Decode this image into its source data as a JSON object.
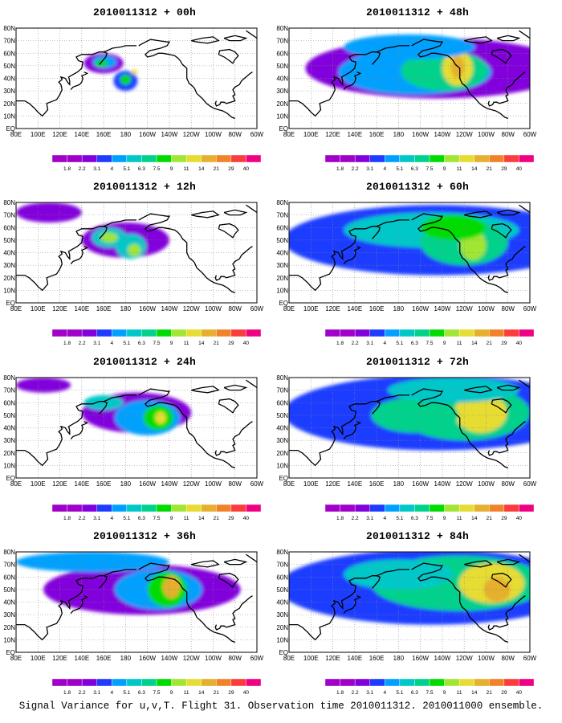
{
  "figure": {
    "caption": "Signal Variance for u,v,T. Flight 31. Observation time 2010011312. 2010011000 ensemble.",
    "lat_labels": [
      "80N",
      "70N",
      "60N",
      "50N",
      "40N",
      "30N",
      "20N",
      "10N",
      "EQ"
    ],
    "lon_labels": [
      "80E",
      "100E",
      "120E",
      "140E",
      "160E",
      "180",
      "160W",
      "140W",
      "120W",
      "100W",
      "80W",
      "60W"
    ],
    "colorbar_labels": [
      "1.8",
      "2.2",
      "3.1",
      "4",
      "5.1",
      "6.3",
      "7.5",
      "9",
      "11",
      "14",
      "21",
      "29",
      "40"
    ],
    "colorbar_colors": [
      "#a000c8",
      "#8200dc",
      "#1e3cff",
      "#00a0ff",
      "#00c8c8",
      "#00d28c",
      "#00dc00",
      "#a0e632",
      "#e6dc32",
      "#e6af2d",
      "#f08228",
      "#fa3c3c",
      "#f00082"
    ],
    "coastline_color": "#000000"
  },
  "panels": [
    {
      "title": "2010011312 + 00h",
      "blobs": [
        [
          160,
          52,
          18,
          8,
          1
        ],
        [
          161,
          53,
          11,
          5,
          3
        ],
        [
          158,
          52,
          6,
          3,
          6
        ],
        [
          180,
          38,
          11,
          8,
          2
        ],
        [
          180,
          39,
          5,
          4,
          6
        ],
        [
          188,
          45,
          3,
          2,
          8
        ]
      ]
    },
    {
      "title": "2010011312 + 48h",
      "blobs": [
        [
          215,
          48,
          120,
          24,
          1
        ],
        [
          195,
          45,
          70,
          18,
          3
        ],
        [
          222,
          46,
          40,
          16,
          5
        ],
        [
          234,
          48,
          14,
          14,
          8
        ],
        [
          234,
          49,
          6,
          9,
          9
        ],
        [
          190,
          65,
          60,
          10,
          3
        ]
      ]
    },
    {
      "title": "2010011312 + 12h",
      "blobs": [
        [
          180,
          50,
          40,
          14,
          1
        ],
        [
          165,
          52,
          16,
          8,
          4
        ],
        [
          165,
          52,
          8,
          4,
          7
        ],
        [
          185,
          45,
          14,
          10,
          4
        ],
        [
          188,
          42,
          6,
          5,
          7
        ],
        [
          110,
          72,
          30,
          8,
          1
        ]
      ]
    },
    {
      "title": "2010011312 + 60h",
      "blobs": [
        [
          215,
          50,
          140,
          28,
          2
        ],
        [
          210,
          58,
          80,
          14,
          4
        ],
        [
          240,
          48,
          40,
          18,
          5
        ],
        [
          248,
          46,
          12,
          12,
          7
        ],
        [
          230,
          60,
          30,
          10,
          6
        ]
      ]
    },
    {
      "title": "2010011312 + 24h",
      "blobs": [
        [
          190,
          52,
          50,
          16,
          1
        ],
        [
          200,
          48,
          30,
          14,
          3
        ],
        [
          210,
          48,
          14,
          10,
          6
        ],
        [
          212,
          48,
          5,
          5,
          8
        ],
        [
          160,
          60,
          18,
          6,
          4
        ],
        [
          105,
          74,
          25,
          6,
          1
        ]
      ]
    },
    {
      "title": "2010011312 + 72h",
      "blobs": [
        [
          215,
          52,
          140,
          30,
          2
        ],
        [
          240,
          52,
          60,
          22,
          5
        ],
        [
          255,
          52,
          24,
          16,
          8
        ],
        [
          195,
          50,
          40,
          14,
          5
        ],
        [
          230,
          70,
          60,
          10,
          4
        ]
      ]
    },
    {
      "title": "2010011312 + 36h",
      "blobs": [
        [
          195,
          50,
          90,
          20,
          1
        ],
        [
          210,
          50,
          40,
          16,
          3
        ],
        [
          218,
          50,
          18,
          14,
          6
        ],
        [
          222,
          52,
          8,
          9,
          9
        ],
        [
          150,
          72,
          70,
          8,
          3
        ]
      ]
    },
    {
      "title": "2010011312 + 84h",
      "blobs": [
        [
          210,
          52,
          140,
          30,
          2
        ],
        [
          235,
          55,
          80,
          22,
          5
        ],
        [
          265,
          55,
          30,
          16,
          8
        ],
        [
          270,
          50,
          12,
          10,
          9
        ],
        [
          180,
          62,
          50,
          12,
          4
        ]
      ]
    }
  ]
}
